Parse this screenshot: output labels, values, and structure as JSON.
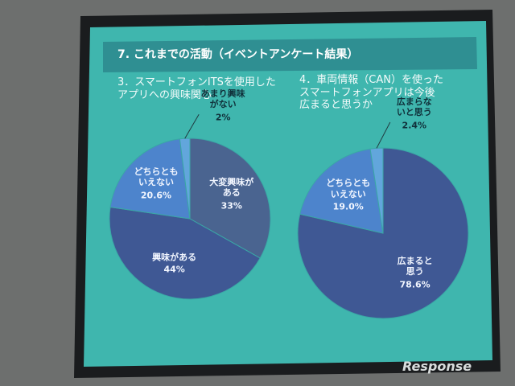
{
  "title": "7. これまでの活動（イベントアンケート結果）",
  "watermark": "Response",
  "chart_data": [
    {
      "type": "pie",
      "title": "3．スマートフォンITSを使用した\nアプリへの興味関心",
      "categories": [
        "大変興味が\nある",
        "興味がある",
        "どちらとも\nいえない",
        "あまり興味\nがない"
      ],
      "values": [
        33,
        44,
        20.6,
        2
      ],
      "value_labels": [
        "33%",
        "44%",
        "20.6%",
        "2%"
      ],
      "colors": [
        "#4a6490",
        "#3f5894",
        "#4d84cc",
        "#62a6dc"
      ]
    },
    {
      "type": "pie",
      "title": "4．車両情報（CAN）を使った\nスマートフォンアプリは今後\n広まると思うか",
      "categories": [
        "広まると\n思う",
        "どちらとも\nいえない",
        "広まらな\nいと思う"
      ],
      "values": [
        78.6,
        19.0,
        2.4
      ],
      "value_labels": [
        "78.6%",
        "19.0%",
        "2.4%"
      ],
      "colors": [
        "#3f5894",
        "#4d84cc",
        "#62a6dc"
      ]
    }
  ]
}
